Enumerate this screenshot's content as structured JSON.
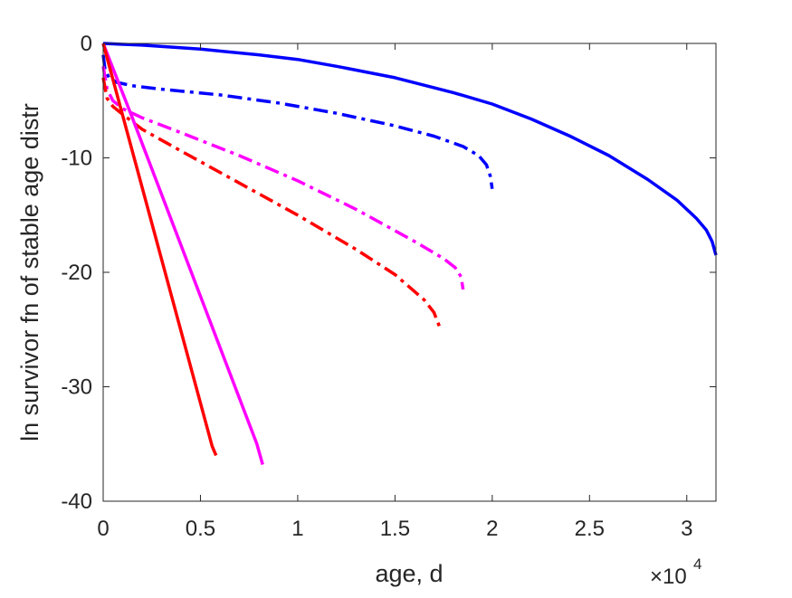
{
  "chart_data": {
    "type": "line",
    "xlabel": "age, d",
    "ylabel": "ln survivor fn of stable age distr",
    "x_exponent_label": {
      "base": "×10",
      "power": "4"
    },
    "xlim": [
      0,
      31500
    ],
    "ylim": [
      -40,
      0
    ],
    "x_ticks": [
      0,
      5000,
      10000,
      15000,
      20000,
      25000,
      30000
    ],
    "x_tick_labels": [
      "0",
      "0.5",
      "1",
      "1.5",
      "2",
      "2.5",
      "3"
    ],
    "y_ticks": [
      0,
      -10,
      -20,
      -30,
      -40
    ],
    "y_tick_labels": [
      "0",
      "-10",
      "-20",
      "-30",
      "-40"
    ],
    "grid": false,
    "box": true,
    "series": [
      {
        "color": "#0000ff",
        "style": "solid",
        "x": [
          0,
          2000,
          5000,
          8000,
          10000,
          12000,
          15000,
          18000,
          20000,
          22000,
          24000,
          26000,
          28000,
          29500,
          30500,
          31000,
          31300,
          31500
        ],
        "y": [
          0,
          -0.15,
          -0.5,
          -1.0,
          -1.4,
          -2.0,
          -3.0,
          -4.3,
          -5.3,
          -6.6,
          -8.1,
          -9.8,
          -11.9,
          -13.7,
          -15.3,
          -16.3,
          -17.3,
          -18.5
        ]
      },
      {
        "color": "#0000ff",
        "style": "dashdot",
        "x": [
          0,
          100,
          300,
          700,
          1500,
          3000,
          6000,
          9000,
          12000,
          15000,
          17000,
          18500,
          19300,
          19700,
          19900,
          20000
        ],
        "y": [
          -1.0,
          -2.3,
          -3.0,
          -3.4,
          -3.7,
          -4.0,
          -4.5,
          -5.2,
          -6.1,
          -7.2,
          -8.1,
          -9.0,
          -9.8,
          -10.6,
          -11.6,
          -12.7
        ]
      },
      {
        "color": "#ff00ff",
        "style": "dashdot",
        "x": [
          0,
          200,
          500,
          1000,
          2000,
          4000,
          7000,
          10000,
          13000,
          16000,
          17500,
          18100,
          18400,
          18500
        ],
        "y": [
          -2.0,
          -4.0,
          -5.0,
          -5.7,
          -6.5,
          -7.8,
          -9.8,
          -12.0,
          -14.5,
          -17.3,
          -18.8,
          -19.6,
          -20.4,
          -21.5
        ]
      },
      {
        "color": "#ff0000",
        "style": "dashdot",
        "x": [
          0,
          200,
          500,
          1000,
          2000,
          4000,
          7000,
          10000,
          13000,
          15000,
          16500,
          17000,
          17300
        ],
        "y": [
          -3.0,
          -4.8,
          -5.5,
          -6.2,
          -7.5,
          -9.4,
          -12.2,
          -15.0,
          -18.0,
          -20.2,
          -22.4,
          -23.5,
          -24.8
        ]
      },
      {
        "color": "#ff00ff",
        "style": "solid",
        "x": [
          0,
          1500,
          7900,
          8200
        ],
        "y": [
          0,
          -6.5,
          -35.0,
          -36.8
        ]
      },
      {
        "color": "#ff0000",
        "style": "solid",
        "x": [
          0,
          5600,
          5800
        ],
        "y": [
          0,
          -35.2,
          -36.0
        ]
      }
    ]
  }
}
